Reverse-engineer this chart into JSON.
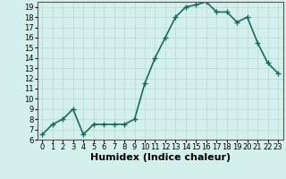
{
  "x": [
    0,
    1,
    2,
    3,
    4,
    5,
    6,
    7,
    8,
    9,
    10,
    11,
    12,
    13,
    14,
    15,
    16,
    17,
    18,
    19,
    20,
    21,
    22,
    23
  ],
  "y": [
    6.5,
    7.5,
    8.0,
    9.0,
    6.5,
    7.5,
    7.5,
    7.5,
    7.5,
    8.0,
    11.5,
    14.0,
    16.0,
    18.0,
    19.0,
    19.2,
    19.5,
    18.5,
    18.5,
    17.5,
    18.0,
    15.5,
    13.5,
    12.5
  ],
  "xlabel": "Humidex (Indice chaleur)",
  "xlim_min": -0.5,
  "xlim_max": 23.5,
  "ylim_min": 6,
  "ylim_max": 19.5,
  "yticks": [
    6,
    7,
    8,
    9,
    10,
    11,
    12,
    13,
    14,
    15,
    16,
    17,
    18,
    19
  ],
  "xticks": [
    0,
    1,
    2,
    3,
    4,
    5,
    6,
    7,
    8,
    9,
    10,
    11,
    12,
    13,
    14,
    15,
    16,
    17,
    18,
    19,
    20,
    21,
    22,
    23
  ],
  "xtick_labels": [
    "0",
    "1",
    "2",
    "3",
    "4",
    "5",
    "6",
    "7",
    "8",
    "9",
    "10",
    "11",
    "12",
    "13",
    "14",
    "15",
    "16",
    "17",
    "18",
    "19",
    "20",
    "21",
    "22",
    "23"
  ],
  "line_color": "#1a6b5a",
  "marker": "+",
  "marker_size": 4,
  "marker_edge_width": 1.0,
  "background_color": "#d4f0ec",
  "grid_color": "#b8d8d4",
  "tick_fontsize": 6,
  "xlabel_fontsize": 8,
  "line_width": 1.2
}
